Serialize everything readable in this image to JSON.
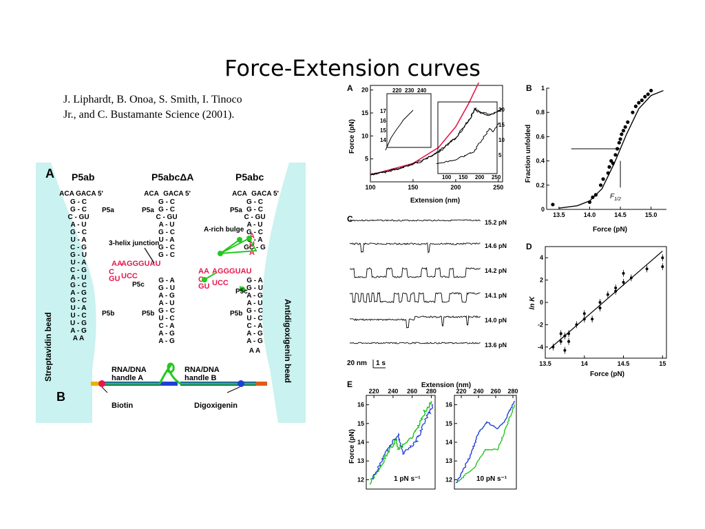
{
  "slide": {
    "title": "Force-Extension curves",
    "citation_line1": "J. Liphardt, B. Onoa, S. Smith, I. Tinoco",
    "citation_line2": "Jr., and C. Bustamante  Science (2001)."
  },
  "left_figure": {
    "panel_a_letter": "A",
    "panel_b_letter": "B",
    "construct_labels": [
      "P5ab",
      "P5abcΔA",
      "P5abc"
    ],
    "helix_labels": {
      "p5a": "P5a",
      "p5b": "P5b",
      "p5c": "P5c"
    },
    "annotations": {
      "three_helix": "3-helix junction",
      "a_rich": "A-rich bulge"
    },
    "bead_left": "Streptavidin bead",
    "bead_right": "Antidigoxigenin bead",
    "handle_a": "RNA/DNA handle A",
    "handle_b": "RNA/DNA handle B",
    "biotin": "Biotin",
    "digoxigenin": "Digoxigenin",
    "colors": {
      "bead": "#c9f2f0",
      "rna_red": "#e8174d",
      "tether_green": "#22c81e",
      "handle_blue": "#1f3fd8"
    }
  },
  "chart_data": [
    {
      "panel": "A",
      "type": "line",
      "xlabel": "Extension (nm)",
      "ylabel": "Force (pN)",
      "xlim": [
        100,
        255
      ],
      "ylim": [
        0,
        21
      ],
      "xticks": [
        100,
        150,
        200,
        250
      ],
      "yticks": [
        5,
        10,
        15,
        20
      ],
      "series": [
        {
          "x": [
            100,
            120,
            140,
            160,
            180,
            200,
            210,
            218,
            222,
            228,
            240,
            250,
            254
          ],
          "y": [
            1.5,
            2.2,
            3.2,
            4.5,
            6.5,
            9.5,
            12,
            14.2,
            16,
            15,
            14.5,
            15.3,
            15.8
          ]
        },
        {
          "x": [
            100,
            150,
            180,
            200,
            215,
            228
          ],
          "y": [
            1.5,
            4,
            7.5,
            12,
            17,
            22
          ]
        }
      ],
      "inset": {
        "xticks": [
          220,
          230,
          240
        ],
        "yticks": [
          14,
          15,
          16,
          17
        ]
      },
      "offset_curve_axis": {
        "xticks": [
          100,
          150,
          200,
          250
        ],
        "yticks": [
          5,
          10,
          15,
          20
        ]
      }
    },
    {
      "panel": "B",
      "type": "scatter",
      "xlabel": "Force (pN)",
      "ylabel": "Fraction unfolded",
      "xlim": [
        13.3,
        15.25
      ],
      "ylim": [
        0,
        1
      ],
      "xticks": [
        13.5,
        14.0,
        14.5,
        15.0
      ],
      "yticks": [
        0,
        0.2,
        0.4,
        0.6,
        0.8,
        1
      ],
      "annotation": "F1/2",
      "points": {
        "x": [
          13.4,
          14.0,
          14.05,
          14.1,
          14.18,
          14.22,
          14.3,
          14.32,
          14.35,
          14.38,
          14.42,
          14.45,
          14.48,
          14.5,
          14.52,
          14.55,
          14.58,
          14.62,
          14.7,
          14.75,
          14.8,
          14.85,
          14.9,
          14.95,
          15.0
        ],
        "y": [
          0.04,
          0.06,
          0.1,
          0.12,
          0.2,
          0.25,
          0.3,
          0.35,
          0.4,
          0.38,
          0.45,
          0.5,
          0.55,
          0.58,
          0.62,
          0.65,
          0.68,
          0.72,
          0.8,
          0.85,
          0.88,
          0.9,
          0.93,
          0.95,
          0.98
        ]
      },
      "fit": {
        "x": [
          13.5,
          13.8,
          14.0,
          14.2,
          14.4,
          14.5,
          14.6,
          14.8,
          15.0,
          15.2
        ],
        "y": [
          0.01,
          0.03,
          0.07,
          0.17,
          0.38,
          0.5,
          0.62,
          0.83,
          0.94,
          0.98
        ]
      }
    },
    {
      "panel": "C",
      "type": "line",
      "traces": [
        "15.2 pN",
        "14.6 pN",
        "14.2 pN",
        "14.1 pN",
        "14.0 pN",
        "13.6 pN"
      ],
      "scale_label": "20 nm",
      "time_label": "1 s"
    },
    {
      "panel": "D",
      "type": "scatter",
      "xlabel": "Force (pN)",
      "ylabel": "ln K",
      "xlim": [
        13.5,
        15.05
      ],
      "ylim": [
        -5,
        5
      ],
      "xticks": [
        13.5,
        14,
        14.5,
        15
      ],
      "yticks": [
        -4,
        -2,
        0,
        2,
        4
      ],
      "points": {
        "x": [
          13.6,
          13.7,
          13.7,
          13.75,
          13.75,
          13.8,
          13.8,
          13.9,
          14.0,
          14.0,
          14.1,
          14.2,
          14.2,
          14.3,
          14.4,
          14.4,
          14.5,
          14.5,
          14.6,
          14.8,
          15.0,
          15.0
        ],
        "y": [
          -4.0,
          -3.5,
          -2.8,
          -3.0,
          -4.3,
          -2.8,
          -3.5,
          -2.0,
          -1.5,
          -1.0,
          -1.5,
          -0.5,
          0.0,
          0.7,
          1.0,
          1.3,
          1.8,
          2.6,
          2.2,
          3.0,
          4.0,
          3.2
        ]
      },
      "fit": {
        "x": [
          13.55,
          15.0
        ],
        "y": [
          -4.2,
          4.6
        ]
      }
    },
    {
      "panel": "E",
      "type": "line",
      "top_label": "Extension (nm)",
      "ylabel": "Force (pN)",
      "xticks": [
        220,
        240,
        260,
        280
      ],
      "yticks": [
        12,
        13,
        14,
        15,
        16
      ],
      "left_rate": "1 pN s⁻¹",
      "right_rate": "10 pN s⁻¹"
    }
  ],
  "panel_letters": {
    "a": "A",
    "b": "B",
    "c": "C",
    "d": "D",
    "e": "E"
  }
}
